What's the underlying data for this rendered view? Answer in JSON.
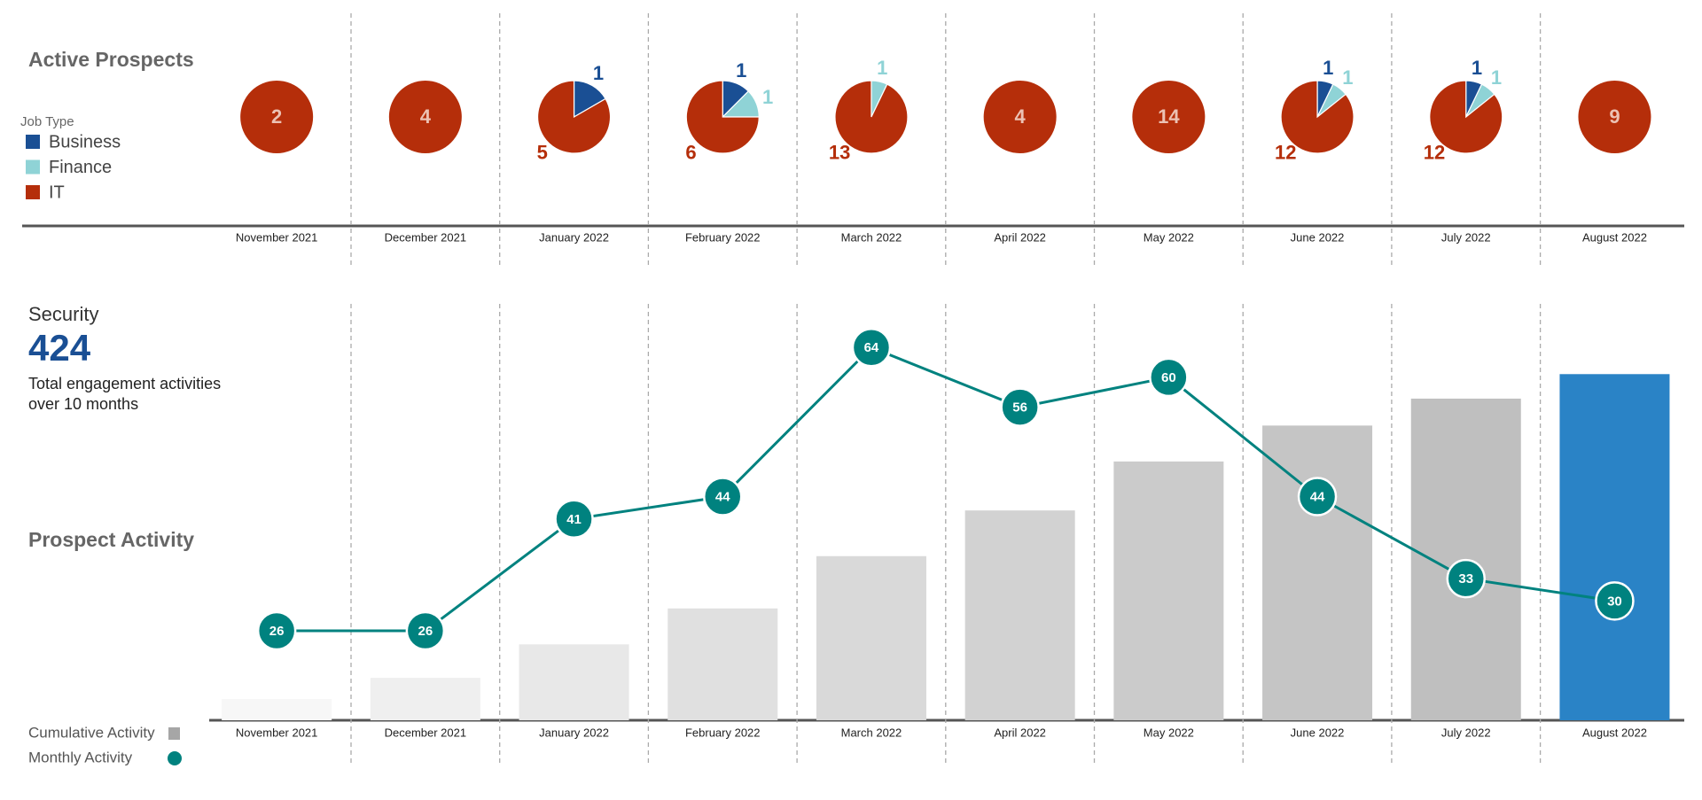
{
  "chart_data": [
    {
      "type": "pie",
      "title": "Active Prospects",
      "legend_title": "Job Type",
      "categories": [
        "November 2021",
        "December 2021",
        "January 2022",
        "February 2022",
        "March 2022",
        "April 2022",
        "May 2022",
        "June 2022",
        "July 2022",
        "August 2022"
      ],
      "series": [
        {
          "name": "Business",
          "color": "#1a4f94",
          "values": [
            null,
            null,
            1,
            1,
            null,
            null,
            null,
            1,
            1,
            null
          ]
        },
        {
          "name": "Finance",
          "color": "#8fd3d6",
          "values": [
            null,
            null,
            null,
            1,
            1,
            null,
            null,
            1,
            1,
            null
          ]
        },
        {
          "name": "IT",
          "color": "#b52e0a",
          "values": [
            2,
            4,
            5,
            6,
            13,
            4,
            14,
            12,
            12,
            9
          ]
        }
      ]
    },
    {
      "type": "bar",
      "title": "Prospect Activity",
      "categories": [
        "November 2021",
        "December 2021",
        "January 2022",
        "February 2022",
        "March 2022",
        "April 2022",
        "May 2022",
        "June 2022",
        "July 2022",
        "August 2022"
      ],
      "ylim": [
        0,
        484
      ],
      "y2lim": [
        14,
        67
      ],
      "series": [
        {
          "name": "Cumulative Activity",
          "color": "#a6a6a6",
          "colors": [
            "#f7f7f7",
            "#efefef",
            "#e8e8e8",
            "#e0e0e0",
            "#d9d9d9",
            "#d2d2d2",
            "#cbcbcb",
            "#c5c5c5",
            "#bfbfbf",
            "#2a83c6"
          ],
          "values": [
            26,
            52,
            93,
            137,
            201,
            257,
            317,
            361,
            394,
            424
          ]
        },
        {
          "name": "Monthly Activity",
          "color": "#00827f",
          "axis": "y2",
          "values": [
            26,
            26,
            41,
            44,
            64,
            56,
            60,
            44,
            33,
            30
          ]
        }
      ]
    }
  ],
  "panel": {
    "label": "Security",
    "value": 424,
    "description": "Total engagement activities over 10 months"
  }
}
